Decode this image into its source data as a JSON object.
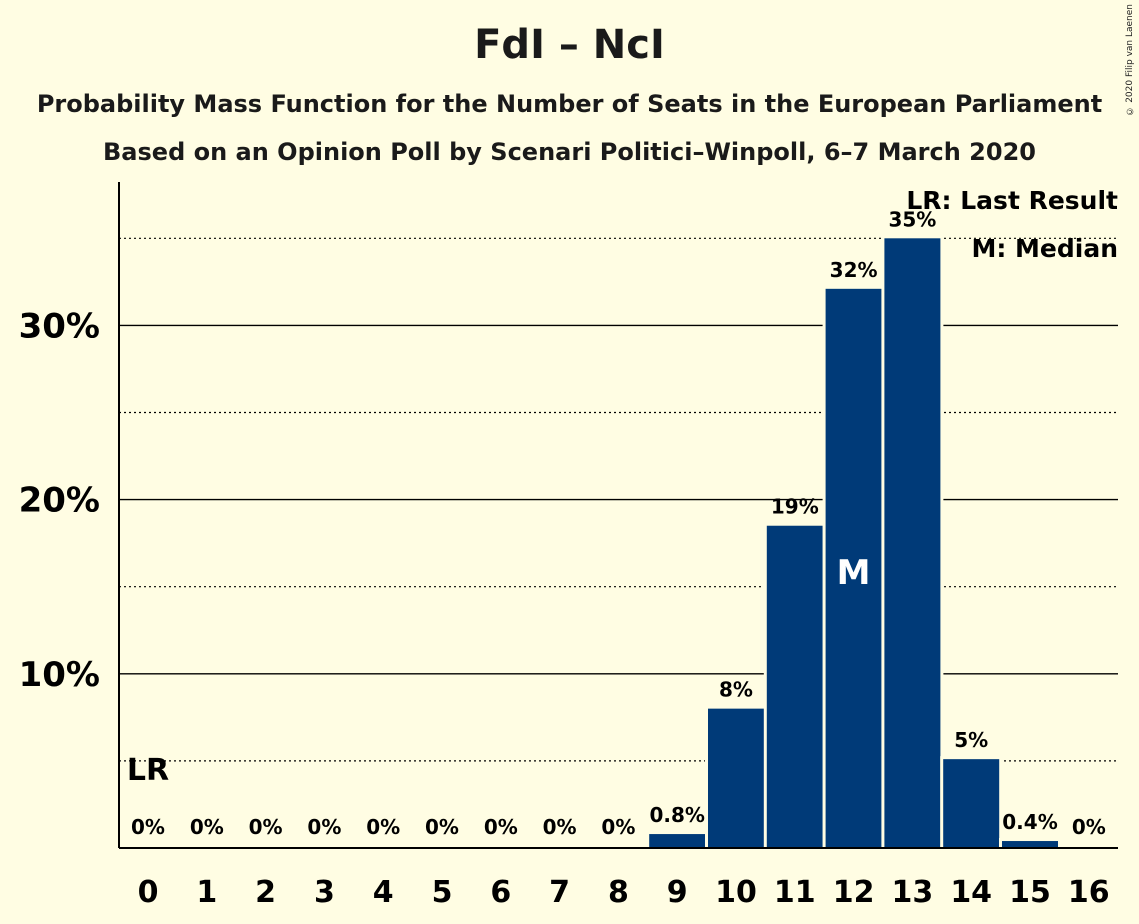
{
  "header": {
    "title": "FdI – NcI",
    "subtitle1": "Probability Mass Function for the Number of Seats in the European Parliament",
    "subtitle2": "Based on an Opinion Poll by Scenari Politici–Winpoll, 6–7 March 2020",
    "copyright": "© 2020 Filip van Laenen"
  },
  "legend": {
    "lr": "LR: Last Result",
    "median": "M: Median"
  },
  "markers": {
    "lr_label": "LR",
    "lr_seats": 0,
    "median_label": "M",
    "median_seats": 12
  },
  "colors": {
    "background": "#fffde3",
    "bar": "#003a78"
  },
  "chart_data": {
    "type": "bar",
    "categories": [
      "0",
      "1",
      "2",
      "3",
      "4",
      "5",
      "6",
      "7",
      "8",
      "9",
      "10",
      "11",
      "12",
      "13",
      "14",
      "15",
      "16"
    ],
    "values": [
      0,
      0,
      0,
      0,
      0,
      0,
      0,
      0,
      0,
      0.8,
      8.0,
      18.5,
      32.1,
      35.0,
      5.1,
      0.4,
      0
    ],
    "data_labels": [
      "0%",
      "0%",
      "0%",
      "0%",
      "0%",
      "0%",
      "0%",
      "0%",
      "0%",
      "0.8%",
      "8%",
      "19%",
      "32%",
      "35%",
      "5%",
      "0.4%",
      "0%"
    ],
    "y_ticks": [
      10,
      20,
      30
    ],
    "y_tick_labels": [
      "10%",
      "20%",
      "30%"
    ],
    "ylim": [
      0,
      38
    ],
    "grid": "solid major every 10%, dotted minor every 5%"
  }
}
